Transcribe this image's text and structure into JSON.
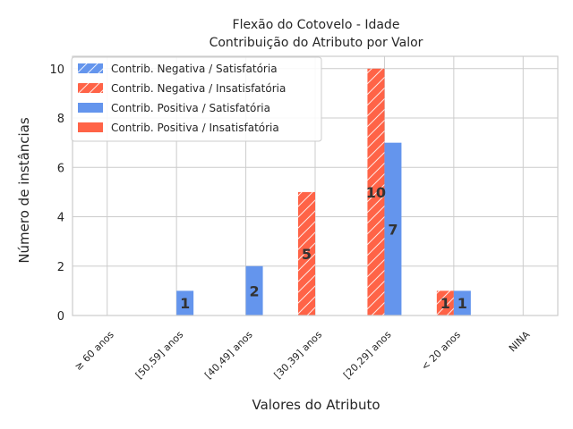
{
  "chart_data": {
    "type": "bar",
    "title_line1": "Flexão do Cotovelo - Idade",
    "title_line2": "Contribuição do Atributo por Valor",
    "xlabel": "Valores do Atributo",
    "ylabel": "Número de instâncias",
    "ylim": [
      0,
      10.5
    ],
    "yticks": [
      "0",
      "2",
      "4",
      "6",
      "8",
      "10"
    ],
    "grid": true,
    "legend_position": "top-left",
    "categories": [
      "≥ 60 anos",
      "[50,59] anos",
      "[40,49] anos",
      "[30,39] anos",
      "[20,29] anos",
      "< 20 anos",
      "NINA"
    ],
    "series": [
      {
        "name": "Contrib. Negativa / Satisfatória",
        "color": "#6495ed",
        "hatch": true,
        "values": [
          0,
          0,
          0,
          0,
          0,
          0,
          0
        ]
      },
      {
        "name": "Contrib. Negativa / Insatisfatória",
        "color": "#ff6347",
        "hatch": true,
        "values": [
          0,
          0,
          0,
          5,
          10,
          1,
          0
        ]
      },
      {
        "name": "Contrib. Positiva / Satisfatória",
        "color": "#6495ed",
        "hatch": false,
        "values": [
          0,
          1,
          2,
          0,
          7,
          1,
          0
        ]
      },
      {
        "name": "Contrib. Positiva / Insatisfatória",
        "color": "#ff6347",
        "hatch": false,
        "values": [
          0,
          0,
          0,
          0,
          0,
          0,
          0
        ]
      }
    ],
    "colors": {
      "blue": "#6495ed",
      "red": "#ff6347",
      "axis": "#cccccc",
      "grid": "#cccccc",
      "text": "#262626",
      "label": "#333333"
    }
  }
}
